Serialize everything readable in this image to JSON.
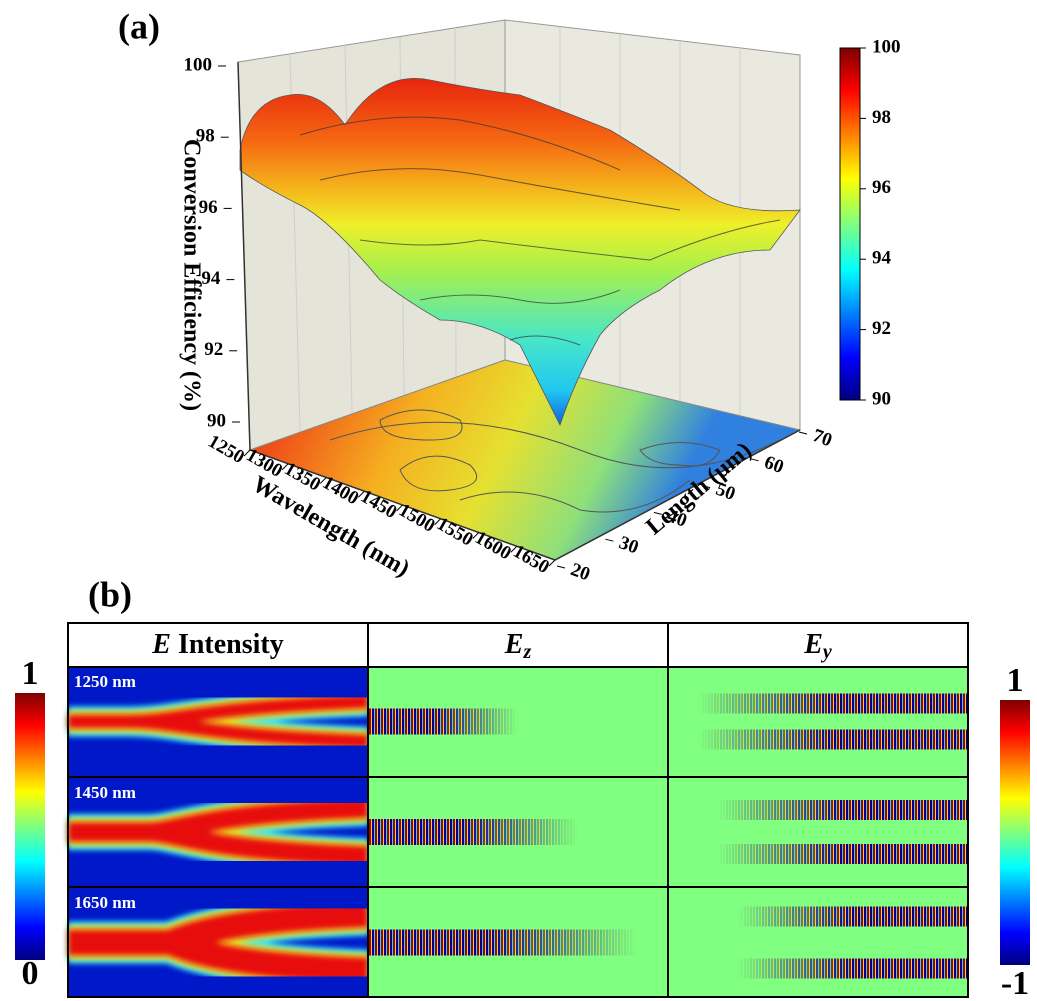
{
  "panel_a": {
    "label": "(a)",
    "z_label": "Conversion Efficiency (%)",
    "x_label": "Wavelength (nm)",
    "y_label": "Length (μm)",
    "zticks": [
      90,
      92,
      94,
      96,
      98,
      100
    ],
    "xticks": [
      1250,
      1300,
      1350,
      1400,
      1450,
      1500,
      1550,
      1600,
      1650
    ],
    "yticks": [
      20,
      30,
      40,
      50,
      60,
      70
    ],
    "colorbar_ticks": [
      90,
      92,
      94,
      96,
      98,
      100
    ]
  },
  "panel_b": {
    "label": "(b)",
    "columns": [
      {
        "symbol": "E",
        "text": " Intensity"
      },
      {
        "symbol": "E",
        "subscript": "z"
      },
      {
        "symbol": "E",
        "subscript": "y"
      }
    ],
    "rows": [
      "1250 nm",
      "1450 nm",
      "1650 nm"
    ],
    "left_colorbar": {
      "max": "1",
      "min": "0"
    },
    "right_colorbar": {
      "max": "1",
      "min": "-1"
    }
  }
}
